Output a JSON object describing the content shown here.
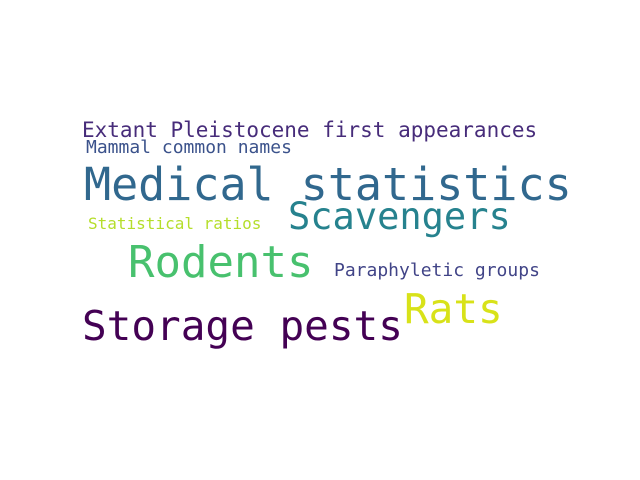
{
  "word_cloud": {
    "words": [
      {
        "text": "Extant Pleistocene first appearances",
        "color": "#472c7a"
      },
      {
        "text": "Mammal common names",
        "color": "#3b528b"
      },
      {
        "text": "Medical statistics",
        "color": "#31688e"
      },
      {
        "text": "Scavengers",
        "color": "#26828e"
      },
      {
        "text": "Statistical ratios",
        "color": "#b5de2b"
      },
      {
        "text": "Rodents",
        "color": "#48c16e"
      },
      {
        "text": "Paraphyletic groups",
        "color": "#414487"
      },
      {
        "text": "Rats",
        "color": "#d8e219"
      },
      {
        "text": "Storage pests",
        "color": "#440154"
      }
    ]
  }
}
